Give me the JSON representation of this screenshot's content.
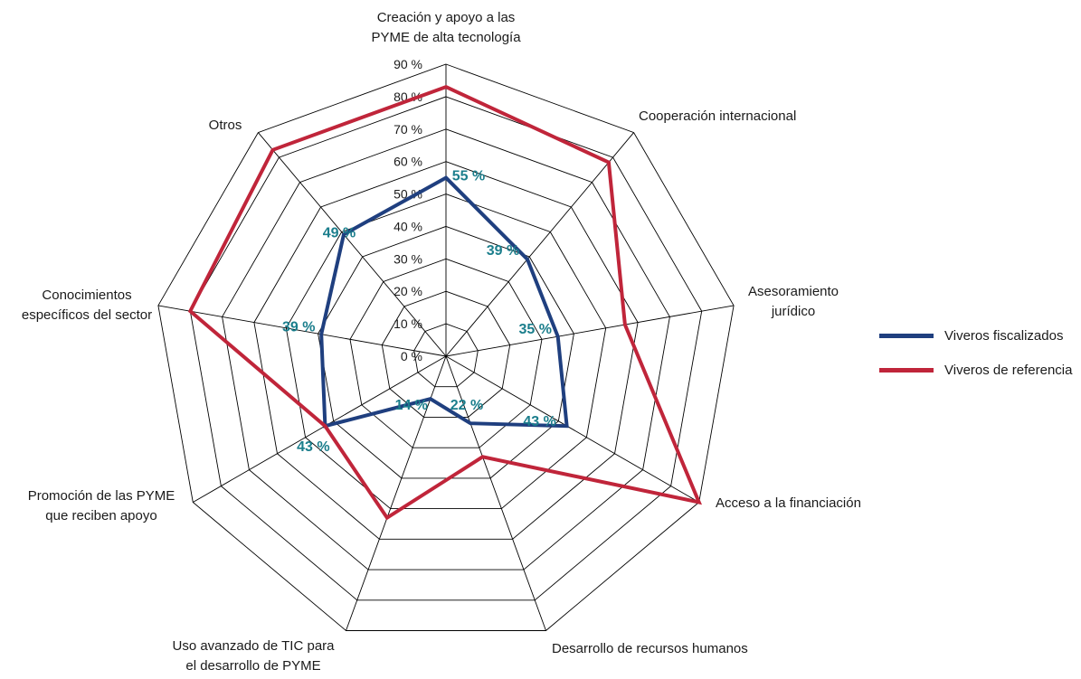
{
  "chart_data": {
    "type": "radar",
    "categories": [
      [
        "Creación y apoyo a las",
        "PYME de alta tecnología"
      ],
      [
        "Cooperación internacional"
      ],
      [
        "Asesoramiento",
        "jurídico"
      ],
      [
        "Acceso a la financiación"
      ],
      [
        "Desarrollo de recursos humanos"
      ],
      [
        "Uso avanzado de TIC para",
        "el desarrollo de PYME"
      ],
      [
        "Promoción de las PYME",
        "que reciben apoyo"
      ],
      [
        "Conocimientos",
        "específicos del sector"
      ],
      [
        "Otros"
      ]
    ],
    "ticks": [
      "0 %",
      "10 %",
      "20 %",
      "30 %",
      "40 %",
      "50 %",
      "60 %",
      "70 %",
      "80 %",
      "90 %"
    ],
    "rmax": 90,
    "series": [
      {
        "name": "Viveros fiscalizados",
        "color": "#1f3f7f",
        "values": [
          55,
          39,
          35,
          43,
          22,
          14,
          43,
          39,
          49
        ],
        "labels": [
          "55 %",
          "39 %",
          "35 %",
          "43 %",
          "22 %",
          "14 %",
          "43 %",
          "39 %",
          "49 %"
        ],
        "label_color": "#1b7e8c"
      },
      {
        "name": "Viveros de referencia",
        "color": "#c0253a",
        "values": [
          83,
          78,
          56,
          90,
          33,
          53,
          43,
          80,
          83
        ]
      }
    ],
    "legend_position": "right",
    "grid": true
  }
}
